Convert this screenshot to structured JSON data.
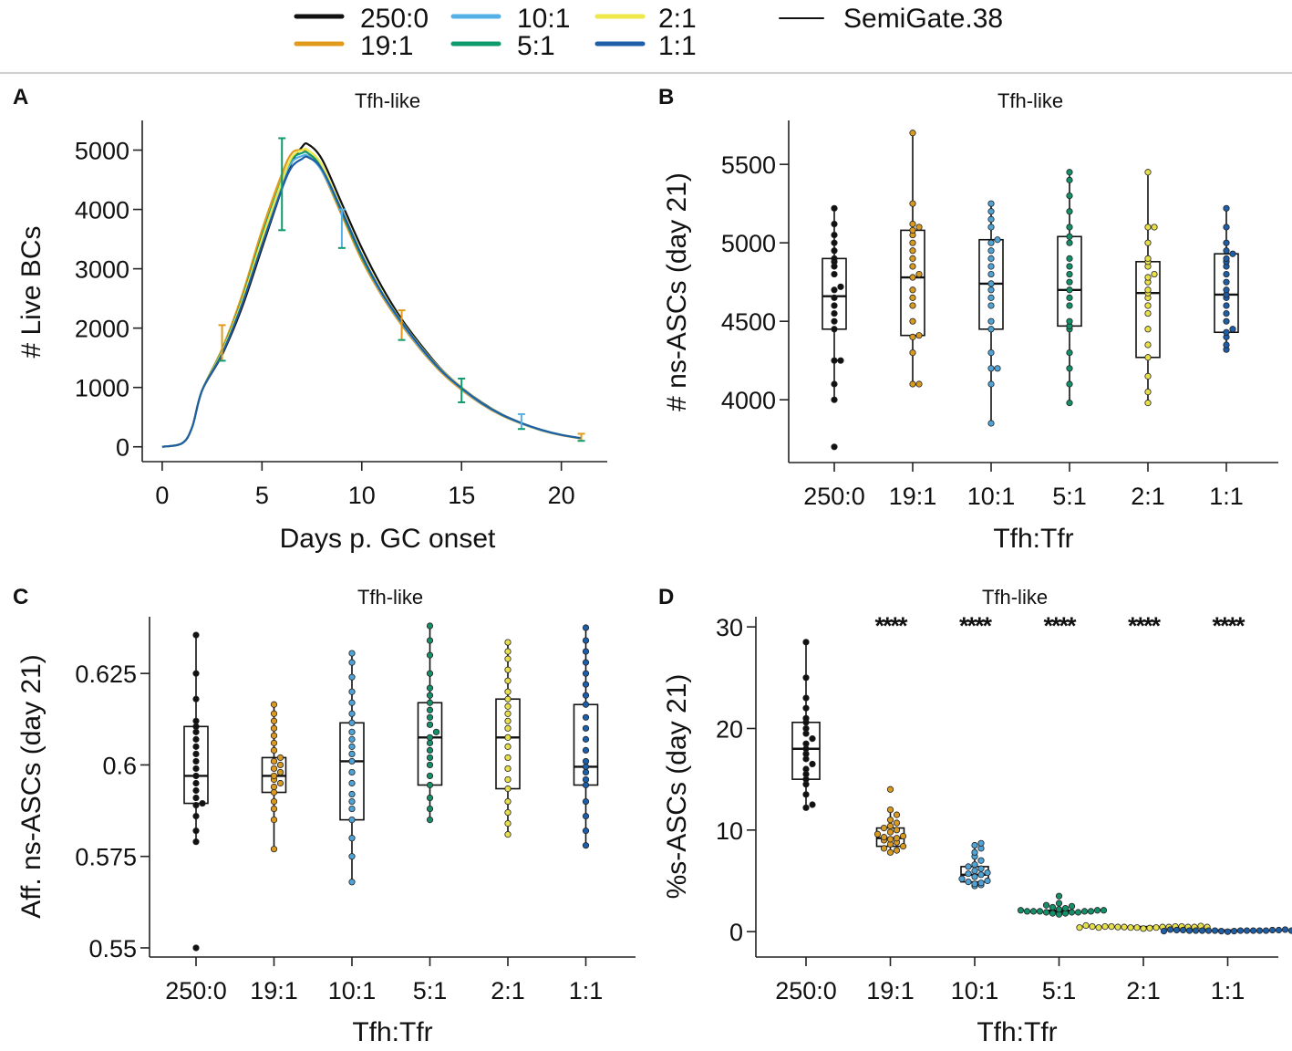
{
  "legend": {
    "entries": [
      {
        "label": "250:0",
        "color": "#111111"
      },
      {
        "label": "19:1",
        "color": "#e09a1c"
      },
      {
        "label": "10:1",
        "color": "#56b0e8"
      },
      {
        "label": "5:1",
        "color": "#0f9a6e"
      },
      {
        "label": "2:1",
        "color": "#eee84a"
      },
      {
        "label": "1:1",
        "color": "#1e5ea6"
      },
      {
        "label": "SemiGate.38",
        "color": "#111111"
      }
    ]
  },
  "chart_data": [
    {
      "panel": "A",
      "type": "line",
      "title": "Tfh-like",
      "xlabel": "Days p. GC onset",
      "ylabel": "# Live BCs",
      "xlim": [
        -1,
        22.3
      ],
      "ylim": [
        -250,
        5500
      ],
      "xticks": [
        0,
        5,
        10,
        15,
        20
      ],
      "yticks": [
        0,
        1000,
        2000,
        3000,
        4000,
        5000
      ],
      "x": [
        0,
        1,
        1.5,
        2,
        3,
        4,
        5,
        6,
        6.5,
        7,
        7.3,
        8,
        9,
        10,
        11,
        12,
        13,
        14,
        15,
        16,
        17,
        18,
        19,
        20,
        21
      ],
      "series": [
        {
          "name": "250:0",
          "values": [
            0,
            60,
            330,
            950,
            1550,
            2350,
            3350,
            4350,
            4800,
            5050,
            5100,
            4850,
            4100,
            3350,
            2700,
            2150,
            1700,
            1300,
            1000,
            750,
            550,
            400,
            280,
            200,
            140
          ]
        },
        {
          "name": "19:1",
          "values": [
            0,
            60,
            330,
            950,
            1650,
            2550,
            3650,
            4600,
            4950,
            5000,
            4950,
            4650,
            3900,
            3150,
            2550,
            2050,
            1620,
            1250,
            960,
            720,
            530,
            390,
            275,
            195,
            140
          ]
        },
        {
          "name": "10:1",
          "values": [
            0,
            60,
            330,
            950,
            1600,
            2450,
            3500,
            4450,
            4800,
            4900,
            4900,
            4650,
            3950,
            3200,
            2580,
            2080,
            1640,
            1270,
            980,
            730,
            540,
            395,
            280,
            200,
            145
          ]
        },
        {
          "name": "5:1",
          "values": [
            0,
            60,
            330,
            950,
            1620,
            2480,
            3550,
            4500,
            4850,
            4950,
            4950,
            4700,
            3950,
            3200,
            2600,
            2100,
            1660,
            1280,
            990,
            740,
            545,
            400,
            285,
            200,
            145
          ]
        },
        {
          "name": "2:1",
          "values": [
            0,
            60,
            330,
            950,
            1600,
            2450,
            3500,
            4480,
            4880,
            5000,
            5000,
            4750,
            4000,
            3250,
            2620,
            2110,
            1670,
            1290,
            1000,
            745,
            550,
            400,
            285,
            200,
            145
          ]
        },
        {
          "name": "1:1",
          "values": [
            0,
            60,
            330,
            950,
            1570,
            2400,
            3400,
            4350,
            4720,
            4850,
            4880,
            4680,
            3980,
            3230,
            2600,
            2100,
            1660,
            1280,
            990,
            740,
            545,
            400,
            285,
            200,
            145
          ]
        }
      ],
      "errorbars": [
        {
          "x": 3,
          "low": 1450,
          "high": 2050
        },
        {
          "x": 6,
          "low": 3650,
          "high": 5200
        },
        {
          "x": 9,
          "low": 3350,
          "high": 4000
        },
        {
          "x": 12,
          "low": 1800,
          "high": 2300
        },
        {
          "x": 15,
          "low": 750,
          "high": 1150
        },
        {
          "x": 18,
          "low": 300,
          "high": 550
        },
        {
          "x": 21,
          "low": 100,
          "high": 220
        }
      ]
    },
    {
      "panel": "B",
      "type": "box",
      "title": "Tfh-like",
      "xlabel": "Tfh:Tfr",
      "ylabel": "# ns-ASCs (day 21)",
      "ylim": [
        3600,
        5780
      ],
      "yticks": [
        4000,
        4500,
        5000,
        5500
      ],
      "categories": [
        "250:0",
        "19:1",
        "10:1",
        "5:1",
        "2:1",
        "1:1"
      ],
      "boxes": [
        {
          "min": 4000,
          "q1": 4450,
          "median": 4660,
          "q3": 4900,
          "max": 5220,
          "points": [
            3700,
            4000,
            4100,
            4250,
            4250,
            4450,
            4500,
            4550,
            4600,
            4650,
            4700,
            4720,
            4800,
            4850,
            4880,
            4900,
            4950,
            5000,
            5050,
            5120,
            5220
          ]
        },
        {
          "min": 4100,
          "q1": 4410,
          "median": 4780,
          "q3": 5080,
          "max": 5700,
          "points": [
            4100,
            4100,
            4300,
            4400,
            4410,
            4500,
            4600,
            4650,
            4700,
            4780,
            4800,
            4850,
            4900,
            4950,
            5000,
            5050,
            5080,
            5100,
            5120,
            5250,
            5700
          ]
        },
        {
          "min": 3850,
          "q1": 4450,
          "median": 4740,
          "q3": 5020,
          "max": 5250,
          "points": [
            3850,
            4100,
            4200,
            4200,
            4300,
            4450,
            4500,
            4600,
            4650,
            4700,
            4740,
            4800,
            4850,
            4900,
            4950,
            5000,
            5020,
            5100,
            5150,
            5200,
            5250
          ]
        },
        {
          "min": 3980,
          "q1": 4470,
          "median": 4700,
          "q3": 5040,
          "max": 5450,
          "points": [
            3980,
            4100,
            4200,
            4300,
            4450,
            4470,
            4500,
            4600,
            4650,
            4700,
            4750,
            4800,
            4850,
            4900,
            5000,
            5040,
            5100,
            5200,
            5300,
            5400,
            5450
          ]
        },
        {
          "min": 3980,
          "q1": 4270,
          "median": 4680,
          "q3": 4880,
          "max": 5450,
          "points": [
            3980,
            4050,
            4150,
            4270,
            4350,
            4450,
            4550,
            4600,
            4650,
            4680,
            4700,
            4750,
            4780,
            4800,
            4850,
            4880,
            4900,
            5000,
            5100,
            5100,
            5450
          ]
        },
        {
          "min": 4320,
          "q1": 4430,
          "median": 4670,
          "q3": 4930,
          "max": 5220,
          "points": [
            4320,
            4350,
            4400,
            4430,
            4450,
            4500,
            4550,
            4600,
            4650,
            4670,
            4700,
            4750,
            4800,
            4850,
            4880,
            4900,
            4930,
            4950,
            5000,
            5100,
            5220
          ]
        }
      ]
    },
    {
      "panel": "C",
      "type": "box",
      "title": "Tfh-like",
      "xlabel": "Tfh:Tfr",
      "ylabel": "Aff. ns-ASCs (day 21)",
      "ylim": [
        0.5475,
        0.6405
      ],
      "yticks": [
        0.55,
        0.575,
        0.6,
        0.625
      ],
      "categories": [
        "250:0",
        "19:1",
        "10:1",
        "5:1",
        "2:1",
        "1:1"
      ],
      "boxes": [
        {
          "min": 0.579,
          "q1": 0.5895,
          "median": 0.597,
          "q3": 0.6105,
          "max": 0.6355,
          "points": [
            0.55,
            0.579,
            0.582,
            0.586,
            0.589,
            0.5895,
            0.591,
            0.593,
            0.595,
            0.597,
            0.599,
            0.601,
            0.603,
            0.605,
            0.607,
            0.609,
            0.6105,
            0.612,
            0.618,
            0.625,
            0.6355
          ]
        },
        {
          "min": 0.577,
          "q1": 0.5925,
          "median": 0.597,
          "q3": 0.602,
          "max": 0.6165,
          "points": [
            0.577,
            0.585,
            0.588,
            0.59,
            0.5925,
            0.594,
            0.595,
            0.596,
            0.597,
            0.598,
            0.599,
            0.6,
            0.601,
            0.602,
            0.604,
            0.606,
            0.608,
            0.61,
            0.612,
            0.614,
            0.6165
          ]
        },
        {
          "min": 0.568,
          "q1": 0.585,
          "median": 0.601,
          "q3": 0.6115,
          "max": 0.6305,
          "points": [
            0.568,
            0.575,
            0.58,
            0.585,
            0.588,
            0.59,
            0.592,
            0.595,
            0.598,
            0.601,
            0.603,
            0.605,
            0.607,
            0.609,
            0.6115,
            0.614,
            0.617,
            0.62,
            0.624,
            0.628,
            0.6305
          ]
        },
        {
          "min": 0.585,
          "q1": 0.5945,
          "median": 0.6075,
          "q3": 0.617,
          "max": 0.638,
          "points": [
            0.585,
            0.588,
            0.591,
            0.5945,
            0.597,
            0.6,
            0.602,
            0.604,
            0.606,
            0.6075,
            0.609,
            0.611,
            0.613,
            0.615,
            0.617,
            0.619,
            0.621,
            0.625,
            0.63,
            0.634,
            0.638
          ]
        },
        {
          "min": 0.581,
          "q1": 0.5935,
          "median": 0.6075,
          "q3": 0.618,
          "max": 0.6335,
          "points": [
            0.581,
            0.584,
            0.587,
            0.59,
            0.5935,
            0.596,
            0.599,
            0.602,
            0.605,
            0.6075,
            0.61,
            0.612,
            0.614,
            0.616,
            0.618,
            0.62,
            0.623,
            0.626,
            0.629,
            0.631,
            0.6335
          ]
        },
        {
          "min": 0.578,
          "q1": 0.5945,
          "median": 0.5995,
          "q3": 0.6165,
          "max": 0.6375,
          "points": [
            0.578,
            0.582,
            0.586,
            0.59,
            0.5945,
            0.596,
            0.598,
            0.5995,
            0.601,
            0.604,
            0.607,
            0.61,
            0.613,
            0.6165,
            0.619,
            0.622,
            0.625,
            0.628,
            0.631,
            0.634,
            0.6375
          ]
        }
      ]
    },
    {
      "panel": "D",
      "type": "box",
      "title": "Tfh-like",
      "xlabel": "Tfh:Tfr",
      "ylabel": "%s-ASCs (day 21)",
      "ylim": [
        -2.5,
        31
      ],
      "yticks": [
        0,
        10,
        20,
        30
      ],
      "categories": [
        "250:0",
        "19:1",
        "10:1",
        "5:1",
        "2:1",
        "1:1"
      ],
      "significance": [
        "",
        "****",
        "****",
        "****",
        "****",
        "****"
      ],
      "boxes": [
        {
          "min": 12.2,
          "q1": 15.0,
          "median": 18.0,
          "q3": 20.6,
          "max": 28.5,
          "points": [
            12.2,
            12.5,
            13.5,
            14.5,
            15.0,
            15.5,
            16.0,
            16.5,
            17.0,
            17.5,
            18.0,
            18.5,
            19.0,
            19.5,
            20.0,
            20.6,
            21.0,
            22.0,
            23.0,
            25.0,
            28.5
          ]
        },
        {
          "min": 7.8,
          "q1": 8.4,
          "median": 9.2,
          "q3": 10.2,
          "max": 12.0,
          "points": [
            7.8,
            8.0,
            8.2,
            8.4,
            8.6,
            8.8,
            9.0,
            9.1,
            9.2,
            9.3,
            9.4,
            9.6,
            9.8,
            10.0,
            10.2,
            10.4,
            10.7,
            11.0,
            11.5,
            12.0,
            14.0
          ]
        },
        {
          "min": 4.5,
          "q1": 4.9,
          "median": 5.6,
          "q3": 6.4,
          "max": 8.7,
          "points": [
            4.5,
            4.6,
            4.7,
            4.8,
            4.9,
            5.0,
            5.2,
            5.4,
            5.6,
            5.7,
            5.8,
            6.0,
            6.2,
            6.4,
            6.6,
            7.0,
            7.4,
            7.8,
            8.2,
            8.5,
            8.7
          ]
        },
        {
          "min": 1.7,
          "q1": 1.9,
          "median": 2.0,
          "q3": 2.1,
          "max": 2.8,
          "points": [
            1.7,
            1.8,
            1.8,
            1.9,
            1.9,
            1.9,
            2.0,
            2.0,
            2.0,
            2.0,
            2.0,
            2.1,
            2.1,
            2.1,
            2.2,
            2.3,
            2.4,
            2.5,
            2.6,
            2.8,
            3.5
          ]
        },
        {
          "min": 0.3,
          "q1": 0.4,
          "median": 0.45,
          "q3": 0.5,
          "max": 0.6,
          "points": [
            0.3,
            0.35,
            0.4,
            0.4,
            0.4,
            0.45,
            0.45,
            0.45,
            0.45,
            0.5,
            0.5,
            0.5,
            0.5,
            0.45,
            0.4,
            0.45,
            0.5,
            0.55,
            0.6,
            0.45,
            0.4
          ]
        },
        {
          "min": 0.0,
          "q1": 0.05,
          "median": 0.1,
          "q3": 0.15,
          "max": 0.2,
          "points": [
            0.0,
            0.05,
            0.05,
            0.1,
            0.1,
            0.1,
            0.1,
            0.1,
            0.1,
            0.1,
            0.1,
            0.1,
            0.1,
            0.15,
            0.15,
            0.15,
            0.15,
            0.2,
            0.2,
            0.1,
            0.05
          ]
        }
      ]
    }
  ]
}
